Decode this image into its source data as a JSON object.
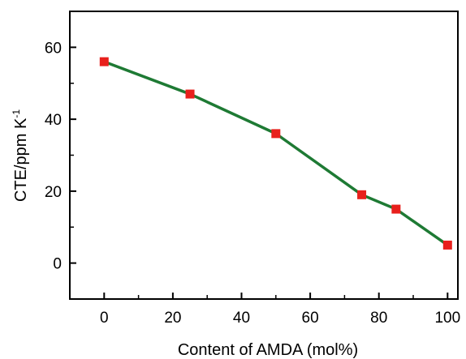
{
  "chart_data": {
    "type": "line",
    "title": "",
    "xlabel": "Content of AMDA (mol%)",
    "ylabel_main": "CTE/ppm K",
    "ylabel_sup": "-1",
    "xlim": [
      -10,
      103
    ],
    "ylim": [
      -10,
      70
    ],
    "x_ticks": [
      0,
      20,
      40,
      60,
      80,
      100
    ],
    "y_ticks": [
      0,
      20,
      40,
      60
    ],
    "series": [
      {
        "line_color": "#1e7a34",
        "marker_color": "#e8201c",
        "marker": "square",
        "points": [
          {
            "x": 0,
            "y": 56
          },
          {
            "x": 25,
            "y": 47
          },
          {
            "x": 50,
            "y": 36
          },
          {
            "x": 75,
            "y": 19
          },
          {
            "x": 85,
            "y": 15
          },
          {
            "x": 100,
            "y": 5
          }
        ]
      }
    ],
    "grid": false,
    "legend": "none"
  }
}
